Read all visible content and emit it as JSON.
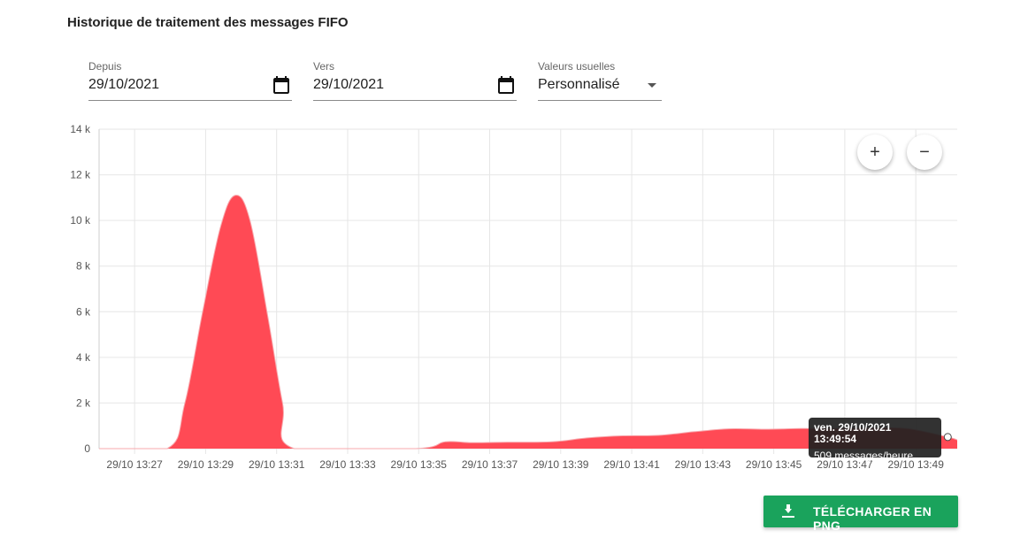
{
  "page": {
    "title": "Historique de traitement des messages FIFO"
  },
  "filters": {
    "from": {
      "label": "Depuis",
      "value": "29/10/2021"
    },
    "to": {
      "label": "Vers",
      "value": "29/10/2021"
    },
    "preset": {
      "label": "Valeurs usuelles",
      "value": "Personnalisé"
    }
  },
  "zoom": {
    "in_icon": "plus-icon",
    "out_icon": "minus-icon"
  },
  "tooltip": {
    "title": "ven. 29/10/2021 13:49:54",
    "value": "509 messages/heure"
  },
  "download": {
    "label": "TÉLÉCHARGER EN PNG",
    "icon": "download-icon"
  },
  "colors": {
    "series": "#ff4a55",
    "button": "#1aa35c",
    "grid": "#e6e6e6"
  },
  "chart_data": {
    "type": "area",
    "y_ticks": [
      "0",
      "2 k",
      "4 k",
      "6 k",
      "8 k",
      "10 k",
      "12 k",
      "14 k"
    ],
    "ylim": [
      0,
      14000
    ],
    "x_ticks": [
      "29/10 13:27",
      "29/10 13:29",
      "29/10 13:31",
      "29/10 13:33",
      "29/10 13:35",
      "29/10 13:37",
      "29/10 13:39",
      "29/10 13:41",
      "29/10 13:43",
      "29/10 13:45",
      "29/10 13:47",
      "29/10 13:49"
    ],
    "xlim": [
      "13:26:00",
      "13:50:10"
    ],
    "grid": true,
    "series": [
      {
        "points": [
          [
            "13:26:00",
            0
          ],
          [
            "13:27:55",
            0
          ],
          [
            "13:28:25",
            2000
          ],
          [
            "13:28:55",
            6000
          ],
          [
            "13:29:25",
            9700
          ],
          [
            "13:29:50",
            11100
          ],
          [
            "13:30:15",
            10000
          ],
          [
            "13:30:45",
            5800
          ],
          [
            "13:31:10",
            2000
          ],
          [
            "13:31:30",
            0
          ],
          [
            "13:34:55",
            0
          ],
          [
            "13:35:45",
            300
          ],
          [
            "13:36:30",
            260
          ],
          [
            "13:37:30",
            280
          ],
          [
            "13:38:45",
            300
          ],
          [
            "13:39:45",
            470
          ],
          [
            "13:40:45",
            560
          ],
          [
            "13:41:45",
            580
          ],
          [
            "13:42:45",
            740
          ],
          [
            "13:43:45",
            870
          ],
          [
            "13:44:45",
            850
          ],
          [
            "13:45:45",
            880
          ],
          [
            "13:46:45",
            880
          ],
          [
            "13:47:45",
            900
          ],
          [
            "13:48:45",
            880
          ],
          [
            "13:49:54",
            509
          ],
          [
            "13:50:10",
            380
          ]
        ]
      }
    ]
  }
}
